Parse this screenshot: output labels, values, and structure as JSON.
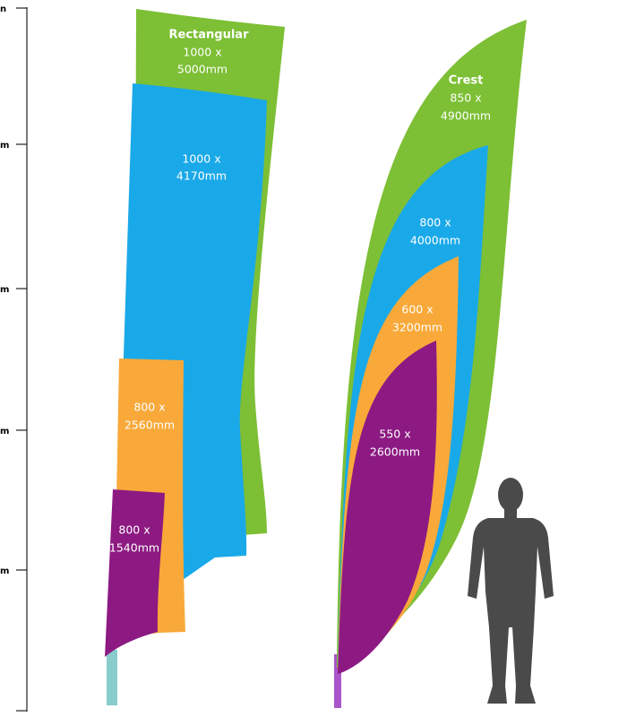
{
  "scale": {
    "labels": [
      "n",
      "m",
      "m",
      "m",
      "m"
    ]
  },
  "rectangular": {
    "title": "Rectangular",
    "flags": [
      {
        "lines": [
          "1000 x",
          "5000mm"
        ]
      },
      {
        "lines": [
          "1000 x",
          "4170mm"
        ]
      },
      {
        "lines": [
          "800 x",
          "2560mm"
        ]
      },
      {
        "lines": [
          "800 x",
          "1540mm"
        ]
      }
    ]
  },
  "crest": {
    "title": "Crest",
    "flags": [
      {
        "lines": [
          "850 x",
          "4900mm"
        ]
      },
      {
        "lines": [
          "800 x",
          "4000mm"
        ]
      },
      {
        "lines": [
          "600 x",
          "3200mm"
        ]
      },
      {
        "lines": [
          "550 x",
          "2600mm"
        ]
      }
    ]
  }
}
